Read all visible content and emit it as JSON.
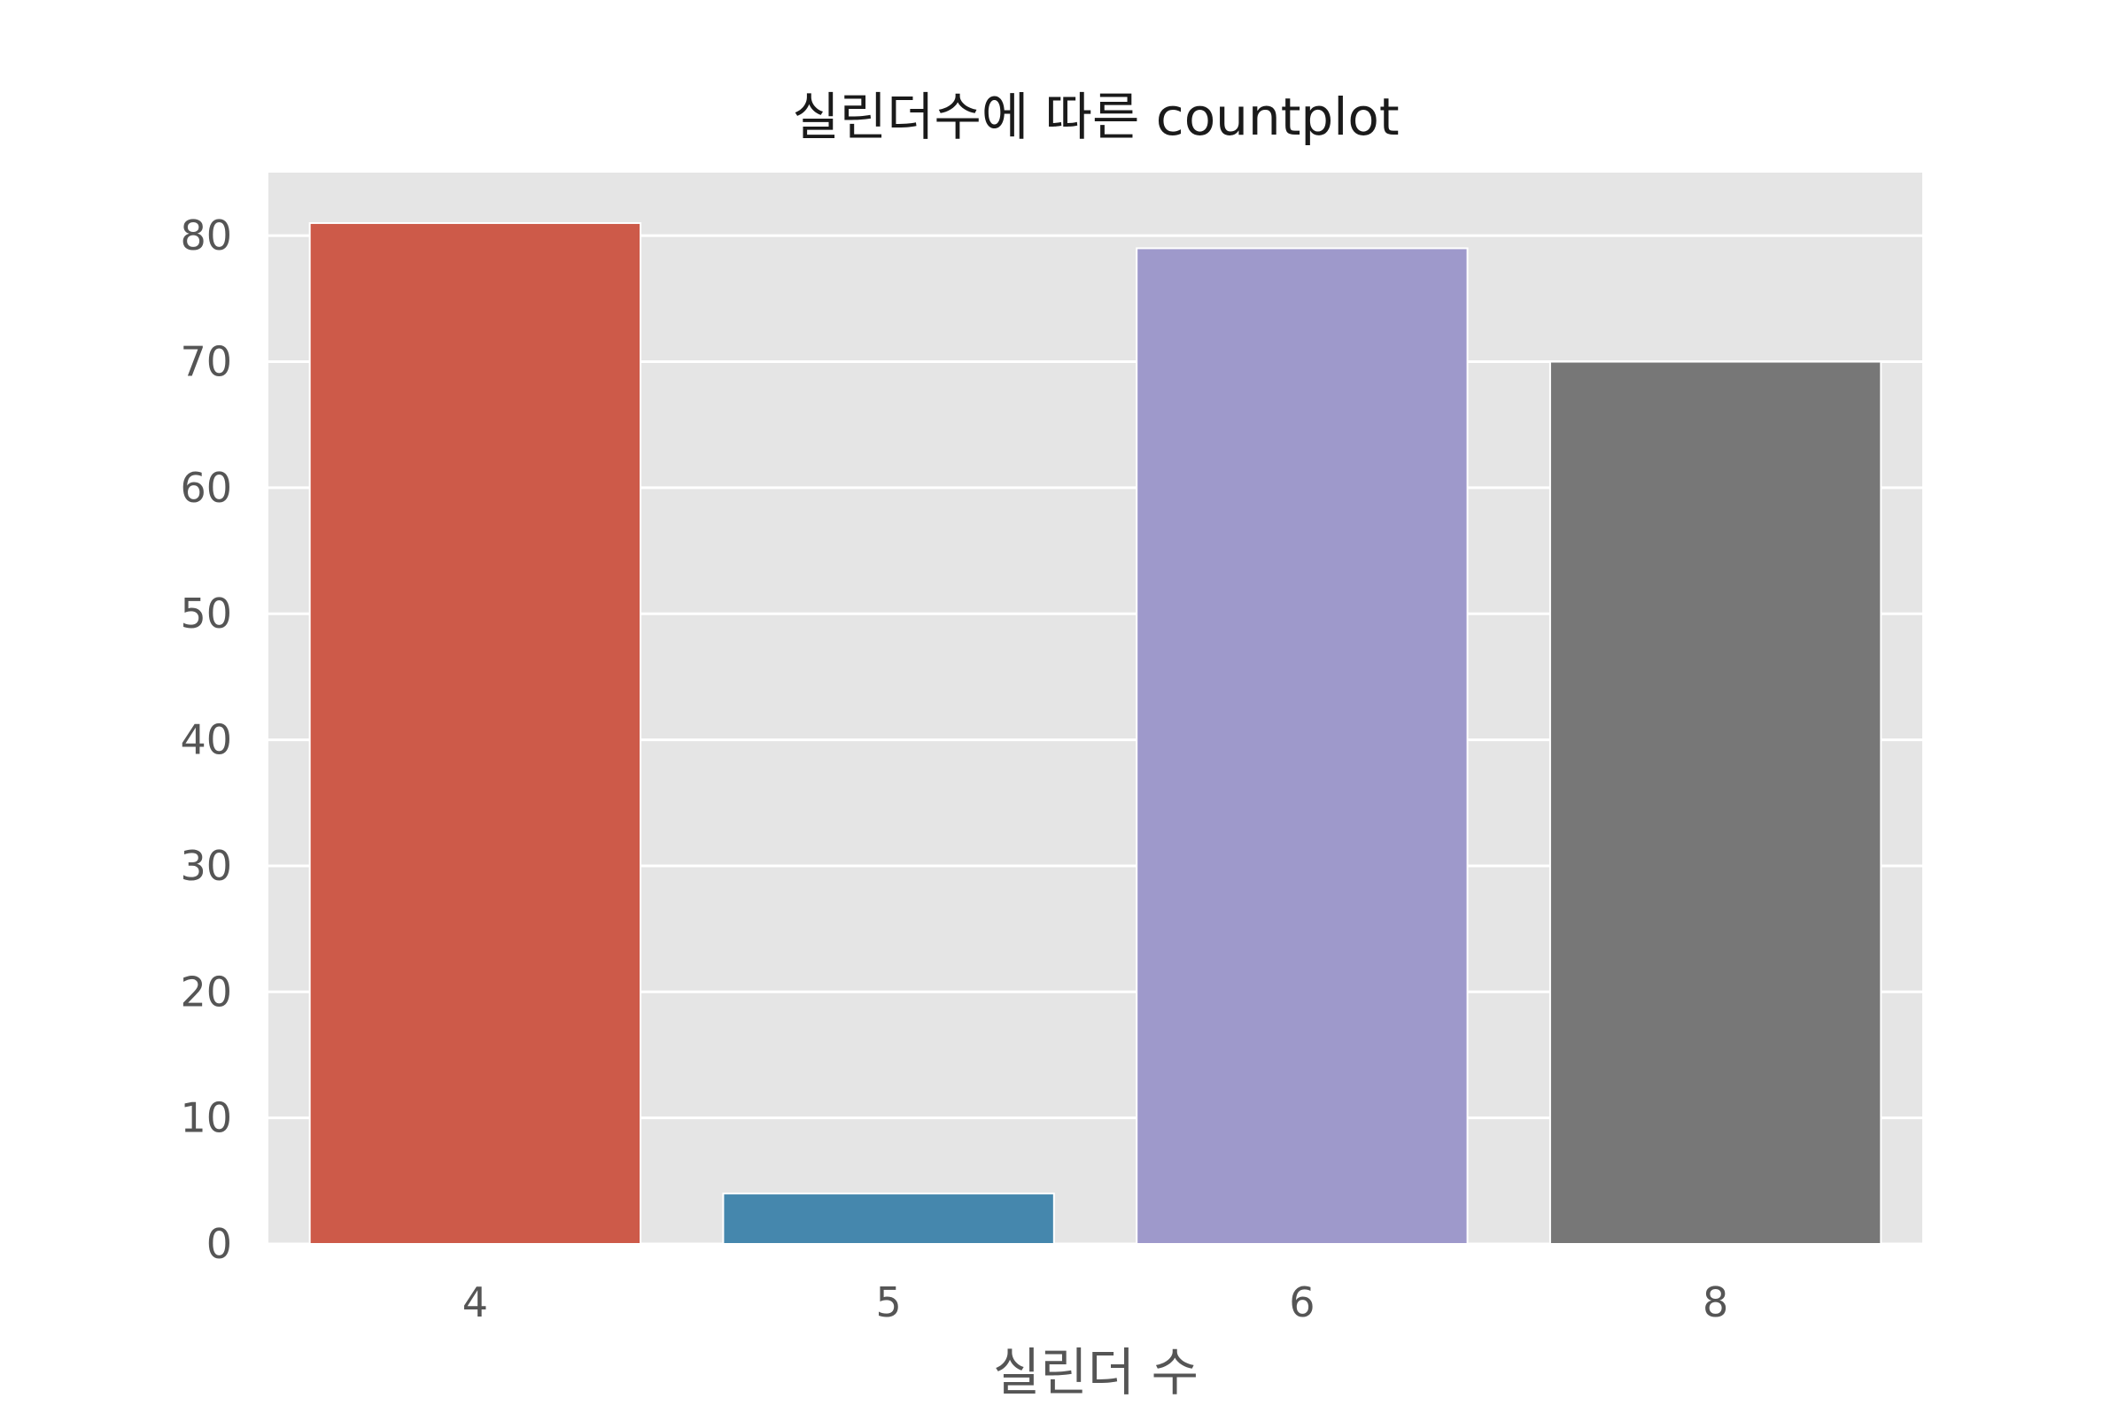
{
  "chart_data": {
    "type": "bar",
    "title": "실린더수에 따른 countplot",
    "xlabel": "실린더 수",
    "ylabel": "",
    "categories": [
      "4",
      "5",
      "6",
      "8"
    ],
    "values": [
      81,
      4,
      79,
      70
    ],
    "ylim": [
      0,
      85
    ],
    "yticks": [
      0,
      10,
      20,
      30,
      40,
      50,
      60,
      70,
      80
    ],
    "colors": [
      "#CD5A49",
      "#4587AD",
      "#9E99CB",
      "#777777"
    ],
    "grid": true,
    "style": {
      "plot_background": "#E5E5E5",
      "grid_color": "#FFFFFF"
    }
  }
}
